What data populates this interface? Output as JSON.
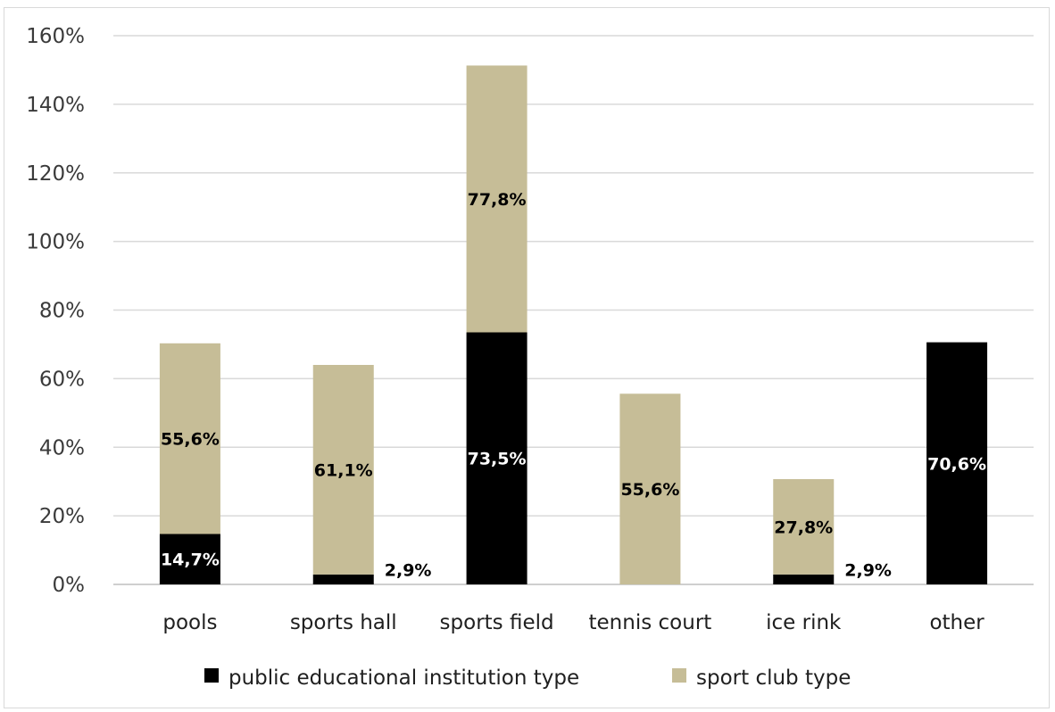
{
  "chart_data": {
    "type": "bar",
    "stacked": true,
    "categories": [
      "pools",
      "sports hall",
      "sports field",
      "tennis court",
      "ice rink",
      "other"
    ],
    "series": [
      {
        "name": "public educational institution type",
        "color": "#000000",
        "values": [
          14.7,
          2.9,
          73.5,
          0,
          2.9,
          70.6
        ],
        "labels": [
          "14,7%",
          "2,9%",
          "73,5%",
          "",
          "2,9%",
          "70,6%"
        ]
      },
      {
        "name": "sport club type",
        "color": "#c6bd97",
        "values": [
          55.6,
          61.1,
          77.8,
          55.6,
          27.8,
          0
        ],
        "labels": [
          "55,6%",
          "61,1%",
          "77,8%",
          "55,6%",
          "27,8%",
          ""
        ]
      }
    ],
    "yticks": [
      "0%",
      "20%",
      "40%",
      "60%",
      "80%",
      "100%",
      "120%",
      "140%",
      "160%"
    ],
    "ylim": [
      0,
      160
    ],
    "grid": true,
    "legend_position": "bottom",
    "title": "",
    "xlabel": "",
    "ylabel": ""
  }
}
